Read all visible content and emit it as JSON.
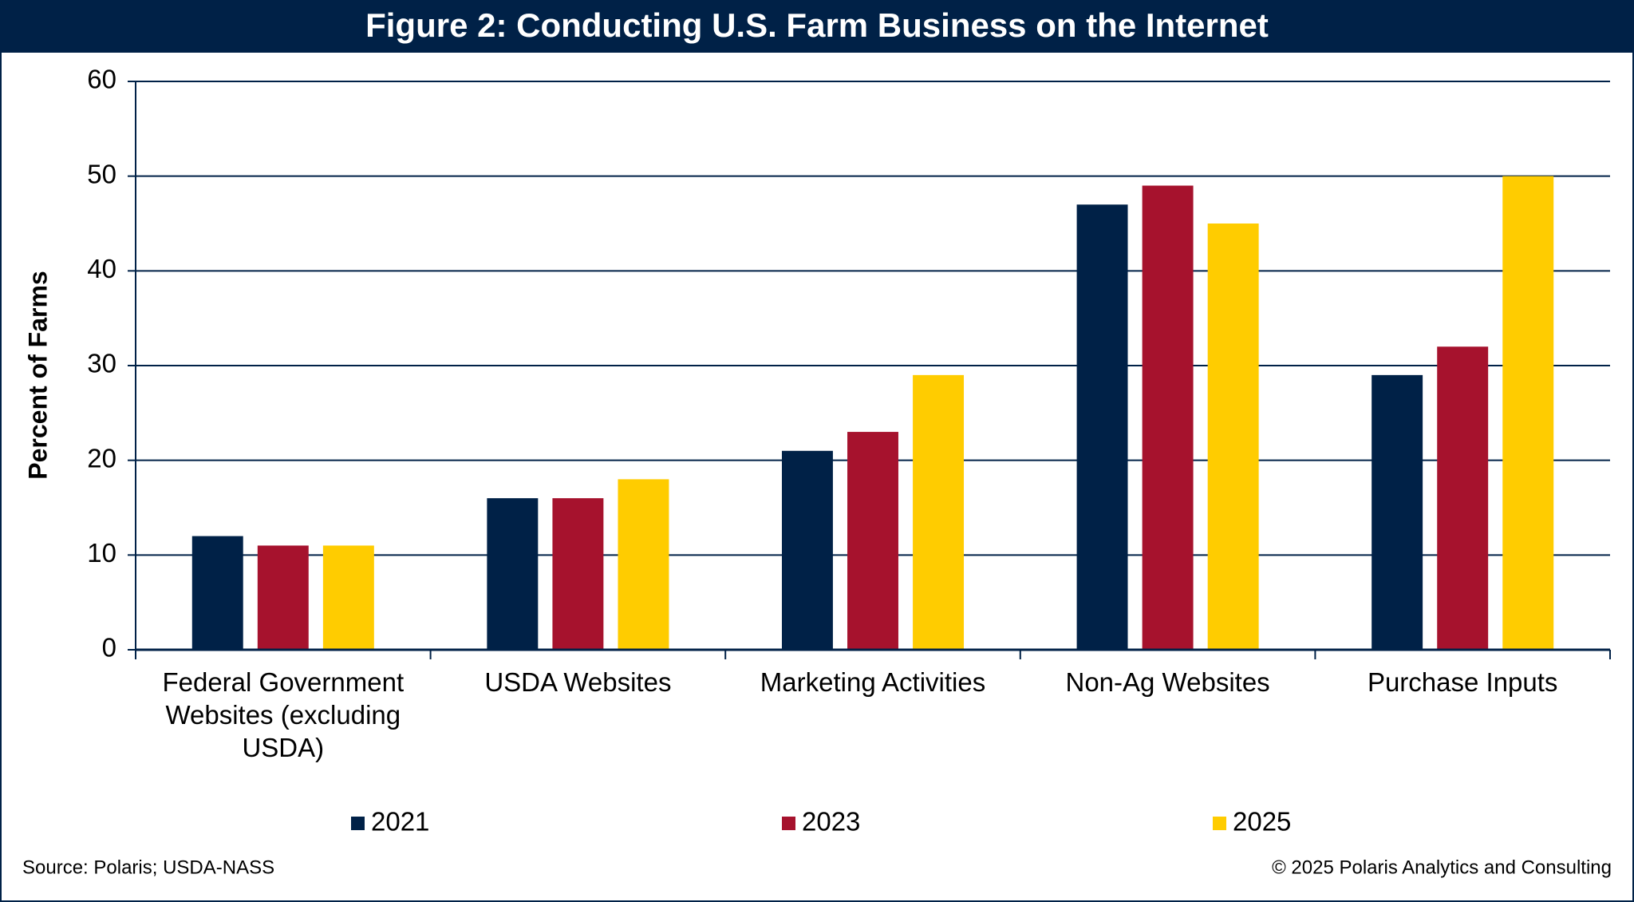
{
  "chart_data": {
    "type": "bar",
    "title": "Figure 2: Conducting U.S. Farm Business on the Internet",
    "y_label": "Percent of Farms",
    "categories": [
      "Federal Government Websites (excluding USDA)",
      "USDA Websites",
      "Marketing Activities",
      "Non-Ag Websites",
      "Purchase Inputs"
    ],
    "series": [
      {
        "name": "2021",
        "color": "#002147",
        "values": [
          12,
          16,
          21,
          47,
          29
        ]
      },
      {
        "name": "2023",
        "color": "#a6122d",
        "values": [
          11,
          16,
          23,
          49,
          32
        ]
      },
      {
        "name": "2025",
        "color": "#ffcc00",
        "values": [
          11,
          18,
          29,
          45,
          50
        ]
      }
    ],
    "ylim": [
      0,
      60
    ],
    "yticks": [
      0,
      10,
      20,
      30,
      40,
      50,
      60
    ],
    "grid": true,
    "legend": "bottom",
    "source": "Source: Polaris; USDA-NASS",
    "copyright": "© 2025 Polaris Analytics and Consulting"
  }
}
